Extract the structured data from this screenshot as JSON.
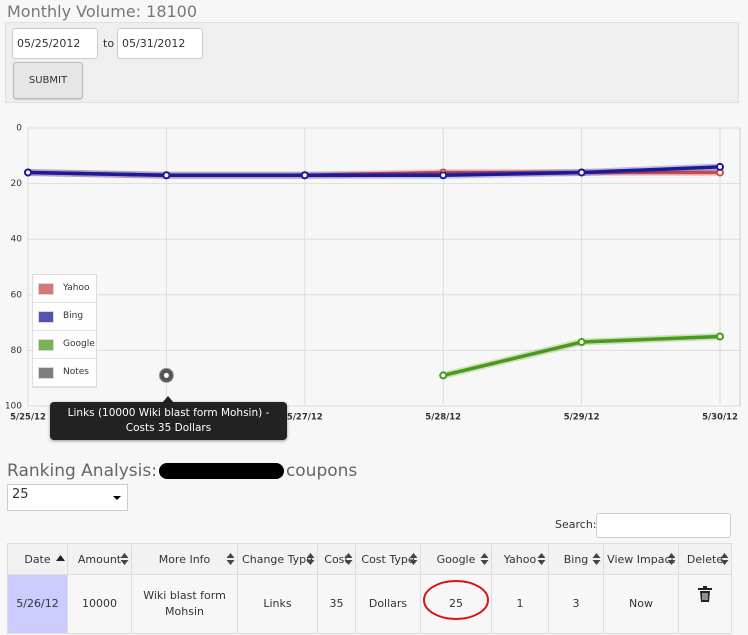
{
  "header": {
    "title": "Monthly Volume: 18100"
  },
  "form": {
    "from": "05/25/2012",
    "to_label": "to",
    "to": "05/31/2012",
    "submit": "SUBMIT"
  },
  "chart_data": {
    "type": "line",
    "categories": [
      "5/25/12",
      "5/26/12",
      "5/27/12",
      "5/28/12",
      "5/29/12",
      "5/30/12"
    ],
    "ylim": [
      0,
      100
    ],
    "yticks": [
      0,
      20,
      40,
      60,
      80,
      100
    ],
    "y_reversed": true,
    "grid": true,
    "legend": "lower left",
    "series": [
      {
        "name": "Yahoo",
        "color": "#cb4b4b",
        "values": [
          16,
          17,
          17,
          16,
          16,
          16
        ]
      },
      {
        "name": "Bing",
        "color": "#1a1a9a",
        "values": [
          16,
          17,
          17,
          17,
          16,
          14
        ]
      },
      {
        "name": "Google",
        "color": "#4a9a1a",
        "values": [
          null,
          null,
          null,
          89,
          77,
          75
        ]
      },
      {
        "name": "Notes",
        "color": "#555555",
        "values": [
          null,
          89,
          null,
          null,
          null,
          null
        ]
      }
    ],
    "annotation": "Links (10000 Wiki blast form Mohsin) - Costs 35 Dollars"
  },
  "ranking": {
    "title_start": "Ranking Analysis:",
    "title_end": "coupons",
    "page_size": "25",
    "search_label": "Search:"
  },
  "table": {
    "headers": [
      "Date",
      "Amount",
      "More Info",
      "Change Type",
      "Cost",
      "Cost Type",
      "Google",
      "Yahoo",
      "Bing",
      "View Impact",
      "Delete"
    ],
    "rows": [
      [
        "5/26/12",
        "10000",
        "Wiki blast form Mohsin",
        "Links",
        "35",
        "Dollars",
        "25",
        "1",
        "3",
        "Now"
      ]
    ]
  }
}
